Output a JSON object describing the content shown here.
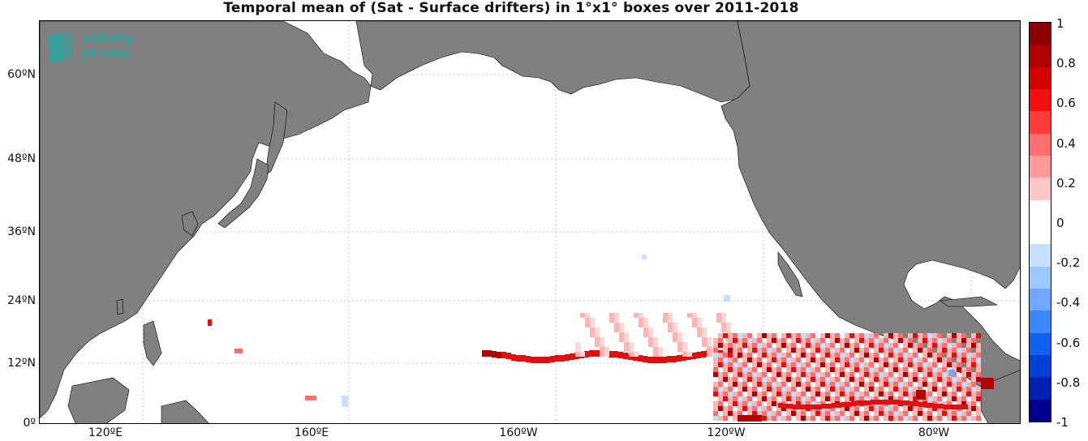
{
  "title": "Temporal mean of (Sat - Surface drifters) in 1°x1° boxes over 2011-2018",
  "logo": {
    "line1": "salinity",
    "line2": "pi-mep"
  },
  "lat_labels": [
    {
      "text": "60ºN"
    },
    {
      "text": "48ºN"
    },
    {
      "text": "36ºN"
    },
    {
      "text": "24ºN"
    },
    {
      "text": "12ºN"
    },
    {
      "text": "0º"
    }
  ],
  "lon_labels": [
    {
      "text": "120ºE"
    },
    {
      "text": "160ºE"
    },
    {
      "text": "160ºW"
    },
    {
      "text": "120ºW"
    },
    {
      "text": "80ºW"
    }
  ],
  "colorbar": {
    "ticks": [
      "1",
      "0.8",
      "0.6",
      "0.4",
      "0.2",
      "0",
      "-0.2",
      "-0.4",
      "-0.6",
      "-0.8",
      "-1"
    ],
    "colors": [
      "#8b0000",
      "#b00000",
      "#d40000",
      "#f01010",
      "#ff3c3c",
      "#ff6e6e",
      "#ff9a9a",
      "#ffc8c8",
      "#ffffff",
      "#ffffff",
      "#c8e0ff",
      "#9ac8ff",
      "#6ea8ff",
      "#3c86ff",
      "#1060f0",
      "#0040d4",
      "#0020b0",
      "#00008b"
    ]
  },
  "colors": {
    "land": "#808080",
    "ocean": "#ffffff",
    "grid": "#c8c8c8"
  }
}
